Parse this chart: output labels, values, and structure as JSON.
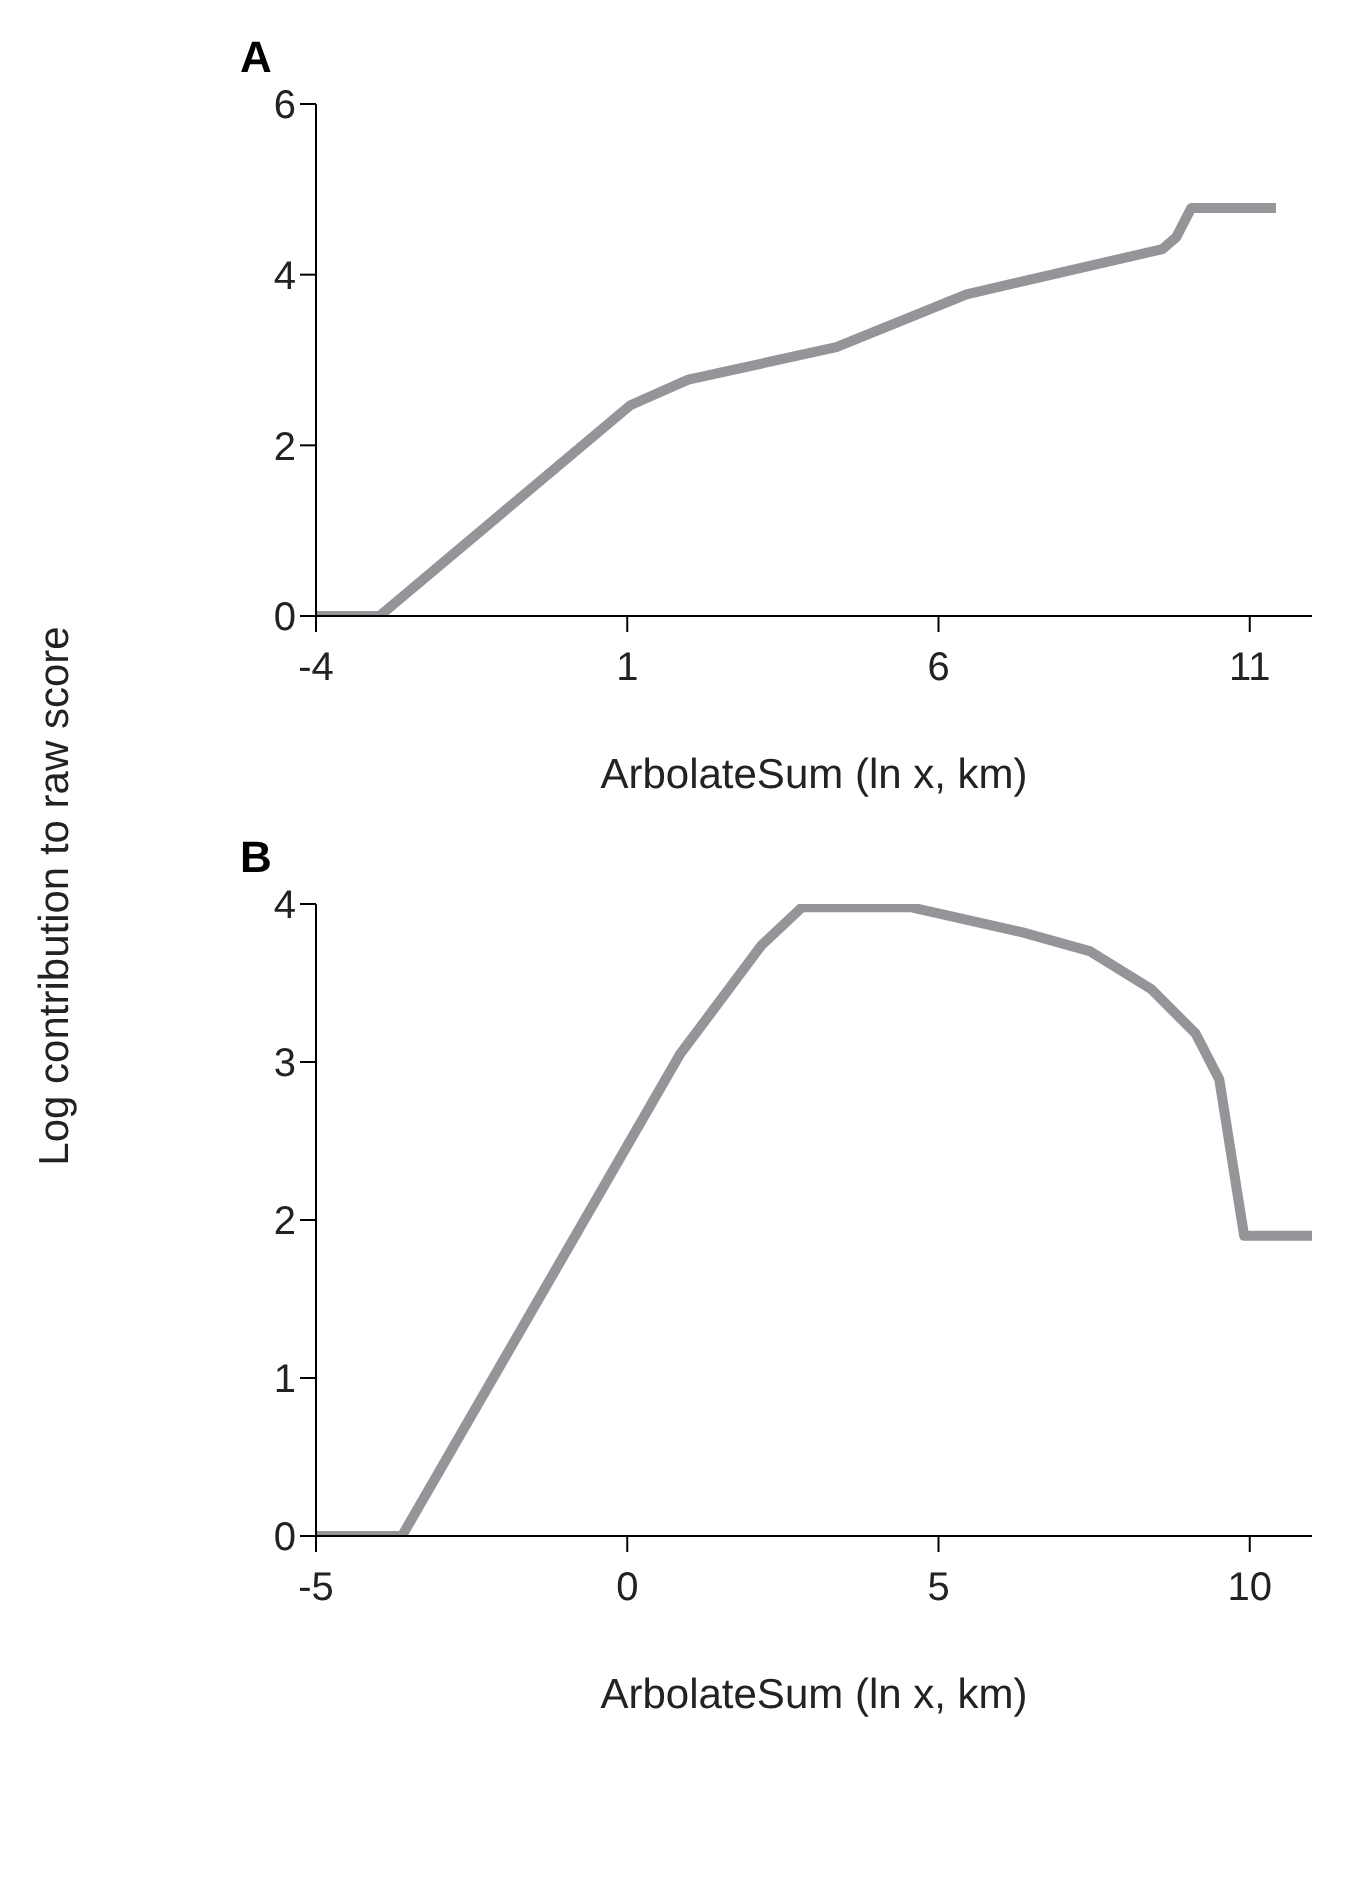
{
  "chart_data": [
    {
      "type": "line",
      "title": "A",
      "xlabel": "ArbolateSum (ln x, km)",
      "ylabel": "Log contribution to raw score",
      "xlim": [
        -4,
        12
      ],
      "xticks": [
        -4,
        1,
        6,
        11
      ],
      "ylim": [
        0,
        6
      ],
      "yticks": [
        0,
        2,
        4,
        6
      ],
      "marker": "none",
      "series": [
        {
          "color": "#939598",
          "x": [
            -4,
            -2.98,
            1.05,
            1.98,
            4.36,
            6.45,
            9.6,
            9.82,
            10.06,
            11.42
          ],
          "values": [
            0,
            0,
            2.47,
            2.77,
            3.15,
            3.77,
            4.3,
            4.44,
            4.78,
            4.78
          ]
        }
      ]
    },
    {
      "type": "line",
      "title": "B",
      "xlabel": "ArbolateSum (ln x, km)",
      "xlim": [
        -5,
        11
      ],
      "xticks": [
        -5,
        0,
        5,
        10
      ],
      "ylim": [
        0,
        4
      ],
      "yticks": [
        0,
        1,
        2,
        3,
        4
      ],
      "marker": "none",
      "series": [
        {
          "color": "#939598",
          "x": [
            -5,
            -3.62,
            0.85,
            2.16,
            2.81,
            4.55,
            6.35,
            7.44,
            8.42,
            9.13,
            9.51,
            9.91,
            11
          ],
          "values": [
            0,
            0,
            3.05,
            3.74,
            3.98,
            3.98,
            3.82,
            3.7,
            3.46,
            3.18,
            2.89,
            1.9,
            1.9
          ]
        }
      ]
    }
  ]
}
